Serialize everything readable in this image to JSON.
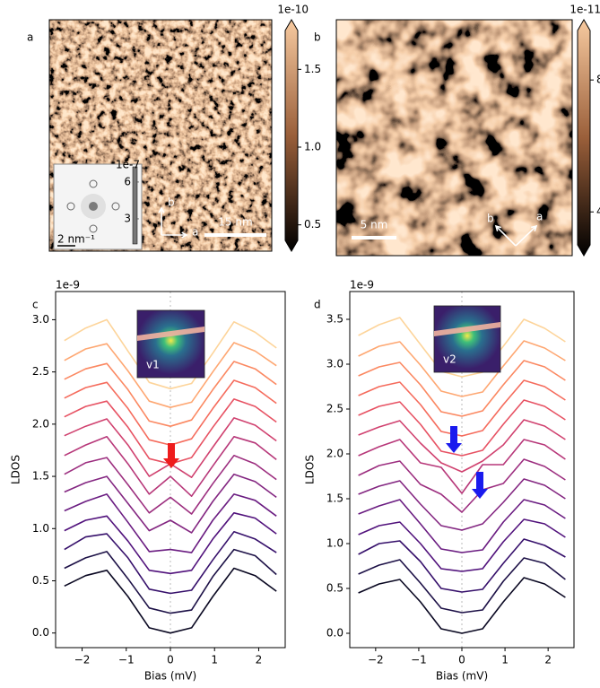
{
  "chart_data": [
    {
      "type": "image",
      "panel": "a",
      "colormap": [
        "#000000",
        "#9a5f3a",
        "#f7caa0"
      ],
      "colorbar_ylim": [
        0.4,
        1.75
      ],
      "colorbar_ticks": [
        0.5,
        {
          "value": 1,
          "label": "1.0"
        },
        1.5
      ],
      "colorbar_offset": "1e-10",
      "scale_bar": "15 nm",
      "direction_labels": [
        "b",
        "a"
      ],
      "inset": {
        "scale_bar": "2 nm⁻¹",
        "colorbar_offset": "1e-7",
        "colorbar_ylim": [
          0.95,
          7.24
        ],
        "colorbar_ticks": [
          6,
          3
        ]
      }
    },
    {
      "type": "image",
      "panel": "b",
      "colormap": [
        "#000000",
        "#9a5f3a",
        "#f7caa0"
      ],
      "colorbar_ylim": [
        3,
        9.5
      ],
      "colorbar_ticks": [
        4,
        8
      ],
      "colorbar_offset": "1e-11",
      "scale_bar": "5 nm",
      "direction_labels": [
        "b",
        "a"
      ]
    },
    {
      "type": "line",
      "panel": "c",
      "xlabel": "Bias (mV)",
      "ylabel": "LDOS",
      "y_offset": "1e-9",
      "inset_label": "v1",
      "xlim": [
        -2.6,
        2.6
      ],
      "ylim": [
        -0.14,
        3.27
      ],
      "xticks": [
        {
          "value": -2,
          "label": "−2"
        },
        {
          "value": -1,
          "label": "−1"
        },
        0,
        1,
        2
      ],
      "yticks": [
        {
          "value": 0,
          "label": "0.0"
        },
        0.5,
        {
          "value": 1,
          "label": "1.0"
        },
        1.5,
        {
          "value": 2,
          "label": "2.0"
        },
        2.5,
        {
          "value": 3,
          "label": "3.0"
        }
      ],
      "x": [
        -2.4,
        -1.92,
        -1.44,
        -0.96,
        -0.48,
        0,
        0.48,
        0.96,
        1.44,
        1.92,
        2.4
      ],
      "series": [
        {
          "color": "#0a0822",
          "values": [
            0.45,
            0.55,
            0.6,
            0.35,
            0.05,
            0.0,
            0.05,
            0.35,
            0.62,
            0.55,
            0.4
          ]
        },
        {
          "color": "#1d1147",
          "values": [
            0.62,
            0.72,
            0.78,
            0.52,
            0.24,
            0.19,
            0.22,
            0.54,
            0.8,
            0.74,
            0.56
          ]
        },
        {
          "color": "#36106b",
          "values": [
            0.8,
            0.92,
            0.95,
            0.72,
            0.42,
            0.38,
            0.41,
            0.7,
            0.97,
            0.9,
            0.77
          ]
        },
        {
          "color": "#51127c",
          "values": [
            0.98,
            1.08,
            1.12,
            0.88,
            0.6,
            0.57,
            0.6,
            0.9,
            1.15,
            1.1,
            0.95
          ]
        },
        {
          "color": "#6a1c81",
          "values": [
            1.17,
            1.26,
            1.33,
            1.06,
            0.78,
            0.8,
            0.77,
            1.08,
            1.33,
            1.27,
            1.12
          ]
        },
        {
          "color": "#832681",
          "values": [
            1.35,
            1.44,
            1.5,
            1.24,
            0.98,
            1.08,
            0.96,
            1.26,
            1.52,
            1.45,
            1.3
          ]
        },
        {
          "color": "#9c2e7f",
          "values": [
            1.52,
            1.63,
            1.68,
            1.42,
            1.15,
            1.3,
            1.14,
            1.43,
            1.7,
            1.62,
            1.47
          ]
        },
        {
          "color": "#b73779",
          "values": [
            1.7,
            1.8,
            1.88,
            1.62,
            1.33,
            1.5,
            1.31,
            1.6,
            1.88,
            1.82,
            1.66
          ]
        },
        {
          "color": "#d0416f",
          "values": [
            1.89,
            1.98,
            2.05,
            1.8,
            1.5,
            1.62,
            1.49,
            1.78,
            2.06,
            1.99,
            1.84
          ]
        },
        {
          "color": "#e75263",
          "values": [
            2.07,
            2.17,
            2.22,
            1.97,
            1.67,
            1.62,
            1.68,
            1.97,
            2.24,
            2.17,
            2.02
          ]
        },
        {
          "color": "#f56b5c",
          "values": [
            2.25,
            2.35,
            2.4,
            2.15,
            1.85,
            1.8,
            1.86,
            2.15,
            2.42,
            2.35,
            2.2
          ]
        },
        {
          "color": "#fb8861",
          "values": [
            2.43,
            2.53,
            2.58,
            2.33,
            2.03,
            1.98,
            2.04,
            2.33,
            2.6,
            2.53,
            2.38
          ]
        },
        {
          "color": "#fea772",
          "values": [
            2.61,
            2.72,
            2.77,
            2.51,
            2.22,
            2.16,
            2.21,
            2.5,
            2.78,
            2.7,
            2.56
          ]
        },
        {
          "color": "#fdd49a",
          "values": [
            2.8,
            2.92,
            3.0,
            2.7,
            2.4,
            2.34,
            2.39,
            2.68,
            2.98,
            2.88,
            2.73
          ]
        }
      ]
    },
    {
      "type": "line",
      "panel": "d",
      "xlabel": "Bias (mV)",
      "ylabel": "LDOS",
      "y_offset": "1e-9",
      "inset_label": "v2",
      "xlim": [
        -2.6,
        2.6
      ],
      "ylim": [
        -0.16,
        3.81
      ],
      "xticks": [
        {
          "value": -2,
          "label": "−2"
        },
        {
          "value": -1,
          "label": "−1"
        },
        0,
        1,
        2
      ],
      "yticks": [
        {
          "value": 0,
          "label": "0.0"
        },
        0.5,
        {
          "value": 1,
          "label": "1.0"
        },
        1.5,
        {
          "value": 2,
          "label": "2.0"
        },
        2.5,
        {
          "value": 3,
          "label": "3.0"
        },
        3.5
      ],
      "x": [
        -2.4,
        -1.92,
        -1.44,
        -0.96,
        -0.48,
        0,
        0.48,
        0.96,
        1.44,
        1.92,
        2.4
      ],
      "series": [
        {
          "color": "#0a0822",
          "values": [
            0.45,
            0.55,
            0.6,
            0.35,
            0.05,
            0.0,
            0.05,
            0.35,
            0.62,
            0.55,
            0.4
          ]
        },
        {
          "color": "#1d1147",
          "values": [
            0.66,
            0.76,
            0.82,
            0.56,
            0.28,
            0.23,
            0.26,
            0.58,
            0.84,
            0.78,
            0.6
          ]
        },
        {
          "color": "#36106b",
          "values": [
            0.88,
            1.0,
            1.03,
            0.8,
            0.5,
            0.46,
            0.49,
            0.78,
            1.05,
            0.98,
            0.85
          ]
        },
        {
          "color": "#51127c",
          "values": [
            1.1,
            1.2,
            1.24,
            1.0,
            0.72,
            0.69,
            0.72,
            1.02,
            1.27,
            1.22,
            1.07
          ]
        },
        {
          "color": "#6a1c81",
          "values": [
            1.33,
            1.42,
            1.49,
            1.22,
            0.94,
            0.9,
            0.93,
            1.24,
            1.49,
            1.43,
            1.28
          ]
        },
        {
          "color": "#832681",
          "values": [
            1.55,
            1.64,
            1.7,
            1.44,
            1.2,
            1.15,
            1.22,
            1.46,
            1.72,
            1.65,
            1.5
          ]
        },
        {
          "color": "#9c2e7f",
          "values": [
            1.76,
            1.87,
            1.92,
            1.66,
            1.55,
            1.35,
            1.6,
            1.67,
            1.94,
            1.86,
            1.71
          ]
        },
        {
          "color": "#b73779",
          "values": [
            1.98,
            2.08,
            2.16,
            1.9,
            1.85,
            1.56,
            1.88,
            1.88,
            2.16,
            2.1,
            1.94
          ]
        },
        {
          "color": "#d0416f",
          "values": [
            2.21,
            2.3,
            2.37,
            2.12,
            1.9,
            1.8,
            1.92,
            2.1,
            2.38,
            2.31,
            2.16
          ]
        },
        {
          "color": "#e75263",
          "values": [
            2.43,
            2.53,
            2.58,
            2.33,
            2.03,
            1.98,
            2.04,
            2.33,
            2.6,
            2.53,
            2.38
          ]
        },
        {
          "color": "#f56b5c",
          "values": [
            2.65,
            2.75,
            2.8,
            2.55,
            2.25,
            2.2,
            2.26,
            2.55,
            2.82,
            2.75,
            2.6
          ]
        },
        {
          "color": "#fb8861",
          "values": [
            2.87,
            2.97,
            3.02,
            2.77,
            2.47,
            2.42,
            2.48,
            2.77,
            3.04,
            2.97,
            2.82
          ]
        },
        {
          "color": "#fea772",
          "values": [
            3.09,
            3.2,
            3.25,
            2.99,
            2.7,
            2.64,
            2.69,
            2.98,
            3.26,
            3.18,
            3.04
          ]
        },
        {
          "color": "#fdd49a",
          "values": [
            3.32,
            3.44,
            3.52,
            3.22,
            2.92,
            2.86,
            2.91,
            3.2,
            3.5,
            3.4,
            3.25
          ]
        }
      ]
    }
  ]
}
